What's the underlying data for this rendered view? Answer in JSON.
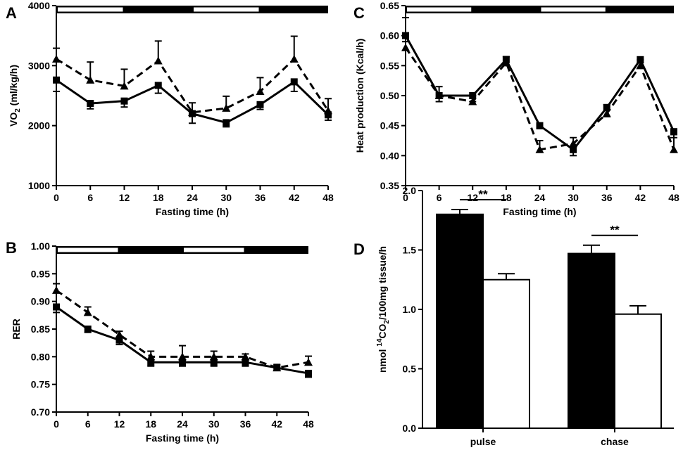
{
  "chart_data": [
    {
      "panel": "A",
      "type": "line",
      "xlabel": "Fasting time (h)",
      "ylabel_main": "VO",
      "ylabel_sub": "2",
      "ylabel_rest": " (ml/kg/h)",
      "ylim": [
        1000,
        4000
      ],
      "yticks": [
        "1000",
        "2000",
        "3000",
        "4000"
      ],
      "xlim": [
        0,
        48
      ],
      "xticks": [
        "0",
        "6",
        "12",
        "18",
        "24",
        "30",
        "36",
        "42",
        "48"
      ],
      "x": [
        0,
        6,
        12,
        18,
        24,
        30,
        36,
        42,
        48
      ],
      "light_dark_bar": [
        "light",
        "dark",
        "light",
        "dark"
      ],
      "series": [
        {
          "style": "solid",
          "marker": "square",
          "values": [
            2760,
            2370,
            2410,
            2670,
            2200,
            2050,
            2350,
            2730,
            2180
          ],
          "errors": [
            190,
            90,
            100,
            130,
            160,
            70,
            80,
            160,
            90
          ]
        },
        {
          "style": "dashed",
          "marker": "triangle",
          "values": [
            3110,
            2760,
            2660,
            3080,
            2220,
            2290,
            2570,
            3110,
            2250
          ],
          "errors": [
            180,
            300,
            280,
            330,
            160,
            200,
            230,
            380,
            200
          ]
        }
      ]
    },
    {
      "panel": "B",
      "type": "line",
      "xlabel": "Fasting time (h)",
      "ylabel": "RER",
      "ylim": [
        0.7,
        1.0
      ],
      "yticks": [
        "0.70",
        "0.75",
        "0.80",
        "0.85",
        "0.90",
        "0.95",
        "1.00"
      ],
      "xlim": [
        0,
        48
      ],
      "xticks": [
        "0",
        "6",
        "12",
        "18",
        "24",
        "30",
        "36",
        "42",
        "48"
      ],
      "x": [
        0,
        6,
        12,
        18,
        24,
        30,
        36,
        42,
        48
      ],
      "light_dark_bar": [
        "light",
        "dark",
        "light",
        "dark"
      ],
      "series": [
        {
          "style": "solid",
          "marker": "square",
          "values": [
            0.89,
            0.85,
            0.83,
            0.79,
            0.79,
            0.79,
            0.79,
            0.78,
            0.77
          ],
          "errors": [
            0.01,
            0.006,
            0.008,
            0.007,
            0.007,
            0.007,
            0.007,
            0.005,
            0.007
          ]
        },
        {
          "style": "dashed",
          "marker": "triangle",
          "values": [
            0.92,
            0.88,
            0.84,
            0.8,
            0.8,
            0.8,
            0.8,
            0.78,
            0.79
          ],
          "errors": [
            0.012,
            0.01,
            0.006,
            0.01,
            0.02,
            0.01,
            0.005,
            0.006,
            0.011
          ]
        }
      ]
    },
    {
      "panel": "C",
      "type": "line",
      "xlabel": "Fasting time (h)",
      "ylabel": "Heat production (Kcal/h)",
      "ylim": [
        0.35,
        0.65
      ],
      "yticks": [
        "0.35",
        "0.40",
        "0.45",
        "0.50",
        "0.55",
        "0.60",
        "0.65"
      ],
      "xlim": [
        0,
        48
      ],
      "xticks": [
        "0",
        "6",
        "12",
        "18",
        "24",
        "30",
        "36",
        "42",
        "48"
      ],
      "x": [
        0,
        6,
        12,
        18,
        24,
        30,
        36,
        42,
        48
      ],
      "light_dark_bar": [
        "light",
        "dark",
        "light",
        "dark"
      ],
      "series": [
        {
          "style": "solid",
          "marker": "square",
          "values": [
            0.6,
            0.5,
            0.5,
            0.56,
            0.45,
            0.41,
            0.48,
            0.56,
            0.44
          ],
          "errors": [
            0.01,
            0.01,
            0.01,
            0.01,
            0.005,
            0.01,
            0.015,
            0.005,
            0.01
          ]
        },
        {
          "style": "dashed",
          "marker": "triangle",
          "values": [
            0.58,
            0.5,
            0.49,
            0.555,
            0.41,
            0.42,
            0.47,
            0.55,
            0.41
          ],
          "errors": [
            0.05,
            0.015,
            0.01,
            0.01,
            0.015,
            0.01,
            0.015,
            0.01,
            0.025
          ]
        }
      ]
    },
    {
      "panel": "D",
      "type": "bar",
      "ylabel_parts": [
        "nmol ",
        "14",
        "CO",
        "2",
        "/100mg tissue/h"
      ],
      "ylim": [
        0.0,
        2.0
      ],
      "yticks": [
        "0.0",
        "0.5",
        "1.0",
        "1.5",
        "2.0"
      ],
      "categories": [
        "pulse",
        "chase"
      ],
      "significance": [
        "**",
        "**"
      ],
      "series": [
        {
          "fill": "black",
          "values": [
            1.8,
            1.47
          ],
          "errors": [
            0.04,
            0.07
          ]
        },
        {
          "fill": "white",
          "values": [
            1.25,
            0.96
          ],
          "errors": [
            0.05,
            0.07
          ]
        }
      ]
    }
  ]
}
